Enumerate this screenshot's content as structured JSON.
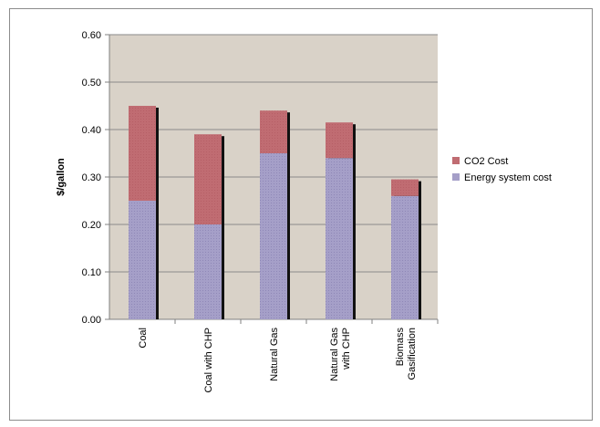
{
  "chart_data": {
    "type": "bar",
    "stacked": true,
    "title": "",
    "xlabel": "",
    "ylabel": "$/gallon",
    "ylim": [
      0,
      0.6
    ],
    "yticks": [
      "0.00",
      "0.10",
      "0.20",
      "0.30",
      "0.40",
      "0.50",
      "0.60"
    ],
    "grid": true,
    "legend_position": "right",
    "categories": [
      "Coal",
      "Coal with CHP",
      "Natural Gas",
      "Natural Gas with CHP",
      "Biomass Gasification"
    ],
    "category_lines": [
      [
        "Coal"
      ],
      [
        "Coal with CHP"
      ],
      [
        "Natural Gas"
      ],
      [
        "Natural Gas",
        "with CHP"
      ],
      [
        "Biomass",
        "Gasification"
      ]
    ],
    "series": [
      {
        "name": "Energy system cost",
        "color": "#a59fc8",
        "values": [
          0.25,
          0.2,
          0.35,
          0.34,
          0.26
        ]
      },
      {
        "name": "CO2 Cost",
        "color": "#c06c72",
        "values": [
          0.2,
          0.19,
          0.09,
          0.075,
          0.035
        ]
      }
    ],
    "legend_order": [
      "CO2 Cost",
      "Energy system cost"
    ],
    "plot_background": "#d9d2c8"
  }
}
